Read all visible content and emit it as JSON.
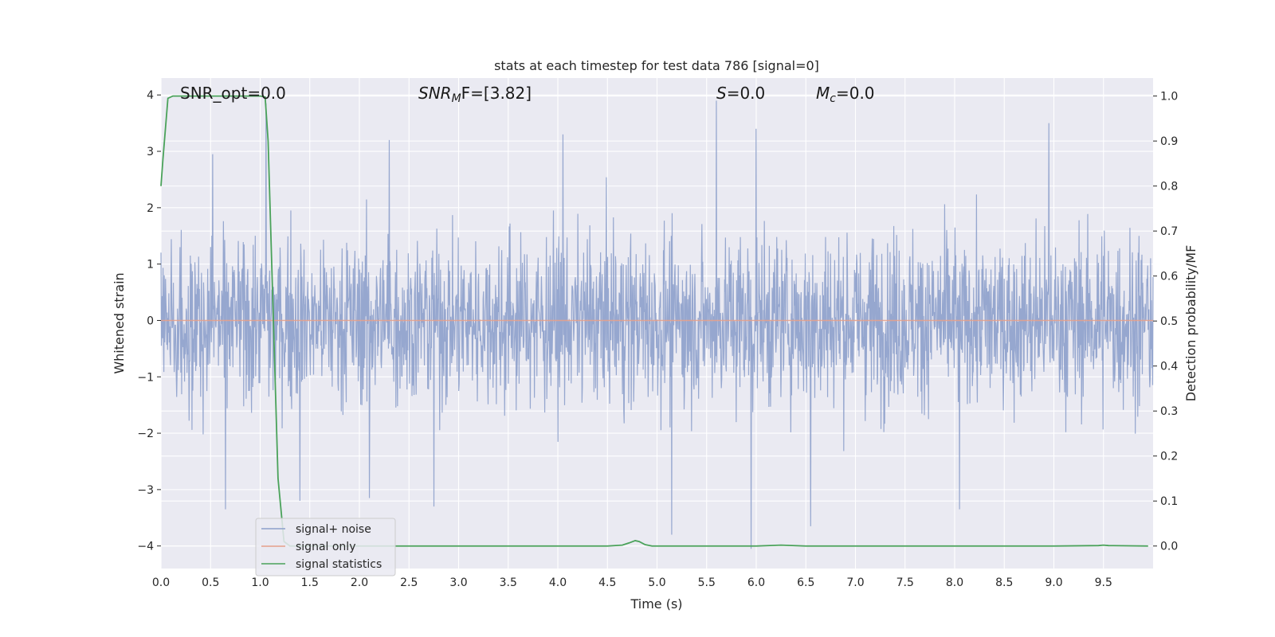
{
  "chart_data": {
    "type": "line",
    "title": "stats at each timestep for test data 786 [signal=0]",
    "xlabel": "Time (s)",
    "ylabel": "Whitened strain",
    "y2label": "Detection probability/MF",
    "xlim": [
      0.0,
      10.0
    ],
    "ylim": [
      -4.4,
      4.3
    ],
    "y2lim": [
      -0.05,
      1.04
    ],
    "x_ticks": [
      0.0,
      0.5,
      1.0,
      1.5,
      2.0,
      2.5,
      3.0,
      3.5,
      4.0,
      4.5,
      5.0,
      5.5,
      6.0,
      6.5,
      7.0,
      7.5,
      8.0,
      8.5,
      9.0,
      9.5
    ],
    "x_tick_labels": [
      "0.0",
      "0.5",
      "1.0",
      "1.5",
      "2.0",
      "2.5",
      "3.0",
      "3.5",
      "4.0",
      "4.5",
      "5.0",
      "5.5",
      "6.0",
      "6.5",
      "7.0",
      "7.5",
      "8.0",
      "8.5",
      "9.0",
      "9.5"
    ],
    "y_ticks": [
      -4,
      -3,
      -2,
      -1,
      0,
      1,
      2,
      3,
      4
    ],
    "y_tick_labels": [
      "−4",
      "−3",
      "−2",
      "−1",
      "0",
      "1",
      "2",
      "3",
      "4"
    ],
    "y2_ticks": [
      0.0,
      0.1,
      0.2,
      0.3,
      0.4,
      0.5,
      0.6,
      0.7,
      0.8,
      0.9,
      1.0
    ],
    "y2_tick_labels": [
      "0.0",
      "0.1",
      "0.2",
      "0.3",
      "0.4",
      "0.5",
      "0.6",
      "0.7",
      "0.8",
      "0.9",
      "1.0"
    ],
    "grid": true,
    "legend_placement": "lower-left",
    "annotations": {
      "snr_opt": "SNR_opt=0.0",
      "snr_mf_base": "SNR",
      "snr_mf_sub": "M",
      "snr_mf_rest": "F=[3.82]",
      "s_base": "S",
      "s_rest": "=0.0",
      "mc_base": "M",
      "mc_sub": "c",
      "mc_rest": "=0.0"
    },
    "series": [
      {
        "name": "signal+ noise",
        "color": "#8da0cb",
        "kind": "noise",
        "description_range": [
          -4.1,
          3.9
        ],
        "peaks": [
          {
            "x": 1.06,
            "y": 3.85
          },
          {
            "x": 5.6,
            "y": 3.9
          },
          {
            "x": 6.0,
            "y": 3.4
          },
          {
            "x": 8.95,
            "y": 3.5
          },
          {
            "x": 4.05,
            "y": 3.3
          },
          {
            "x": 2.3,
            "y": 3.2
          },
          {
            "x": 0.52,
            "y": 2.95
          }
        ],
        "troughs": [
          {
            "x": 5.95,
            "y": -4.05
          },
          {
            "x": 5.15,
            "y": -3.8
          },
          {
            "x": 6.55,
            "y": -3.65
          },
          {
            "x": 0.65,
            "y": -3.35
          },
          {
            "x": 8.05,
            "y": -3.35
          },
          {
            "x": 2.75,
            "y": -3.3
          },
          {
            "x": 1.4,
            "y": -3.2
          },
          {
            "x": 2.1,
            "y": -3.15
          }
        ]
      },
      {
        "name": "signal only",
        "color": "#e5a08a",
        "kind": "flat",
        "value": 0.0
      },
      {
        "name": "signal statistics",
        "color": "#4aa25a",
        "axis": "y2",
        "x": [
          0.0,
          0.02,
          0.07,
          0.12,
          0.2,
          0.4,
          0.6,
          0.8,
          1.0,
          1.05,
          1.08,
          1.12,
          1.18,
          1.24,
          1.3,
          1.5,
          2.0,
          3.0,
          4.0,
          4.5,
          4.65,
          4.72,
          4.78,
          4.82,
          4.88,
          4.95,
          5.0,
          5.5,
          6.0,
          6.25,
          6.5,
          7.0,
          8.0,
          9.0,
          9.45,
          9.5,
          9.55,
          9.95
        ],
        "y": [
          0.8,
          0.86,
          0.995,
          1.0,
          1.0,
          1.0,
          1.0,
          1.0,
          1.0,
          0.998,
          0.9,
          0.6,
          0.15,
          0.01,
          0.0,
          0.0,
          0.0,
          0.0,
          0.0,
          0.0,
          0.002,
          0.007,
          0.012,
          0.01,
          0.003,
          0.0,
          0.0,
          0.0,
          0.0,
          0.002,
          0.0,
          0.0,
          0.0,
          0.0,
          0.001,
          0.002,
          0.001,
          0.0
        ]
      }
    ]
  }
}
